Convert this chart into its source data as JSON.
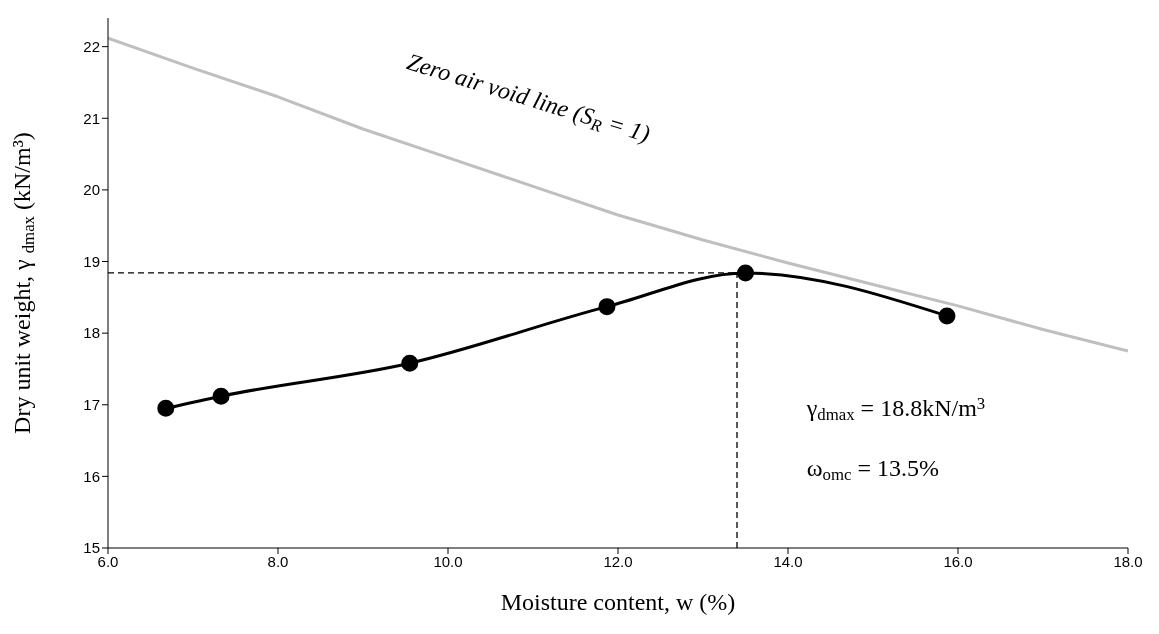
{
  "chart_data": {
    "type": "line",
    "xlabel": "Moisture content, w (%)",
    "ylabel": "Dry unit weight, γ $_{dmax}$ (kN/m³)",
    "xlim": [
      6,
      18
    ],
    "xticks": [
      {
        "value": 6,
        "label": "6.0"
      },
      {
        "value": 8,
        "label": "8.0"
      },
      {
        "value": 10,
        "label": "10.0"
      },
      {
        "value": 12,
        "label": "12.0"
      },
      {
        "value": 14,
        "label": "14.0"
      },
      {
        "value": 16,
        "label": "16.0"
      },
      {
        "value": 18,
        "label": "18.0"
      }
    ],
    "ylim": [
      15,
      22.4
    ],
    "yticks": [
      15,
      16,
      17,
      18,
      19,
      20,
      21,
      22
    ],
    "series": [
      {
        "color": "#bfbfbf",
        "marker": "none",
        "line_style": "solid",
        "x": [
          6,
          7,
          8,
          9,
          10,
          11,
          12,
          13,
          14,
          15,
          16,
          17,
          18
        ],
        "values": [
          22.12,
          21.7,
          21.3,
          20.85,
          20.45,
          20.05,
          19.65,
          19.3,
          18.98,
          18.68,
          18.38,
          18.05,
          17.75
        ]
      },
      {
        "color": "#000000",
        "marker": "none",
        "line_style": "dashed",
        "x": [
          6,
          13.4
        ],
        "values": [
          18.84,
          18.84
        ]
      },
      {
        "color": "#000000",
        "marker": "none",
        "line_style": "dashed",
        "x": [
          13.4,
          13.4
        ],
        "values": [
          15,
          18.84
        ]
      },
      {
        "color": "#000000",
        "marker": "circle",
        "line_style": "solid",
        "x": [
          6.68,
          7.33,
          9.55,
          11.87,
          13.5,
          15.87
        ],
        "values": [
          16.95,
          17.12,
          17.58,
          18.37,
          18.84,
          18.24
        ]
      }
    ],
    "annotations": [
      "Zero air void line (S$_{R}$ = 1)",
      "γ$_{dmax}$ = 18.8kN/m$^{3}$",
      "ω$_{omc}$ = 13.5%"
    ]
  }
}
